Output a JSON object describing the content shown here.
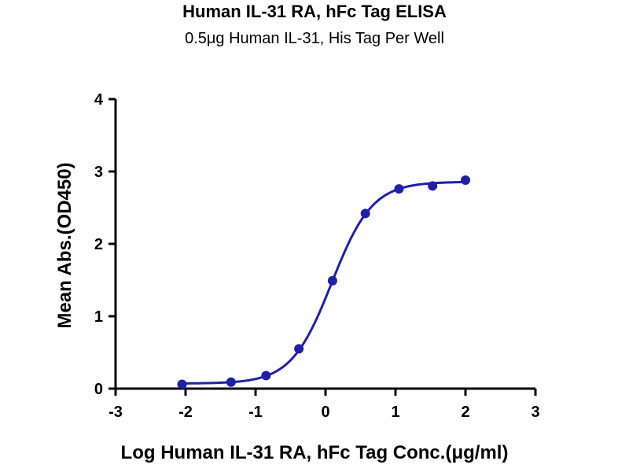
{
  "chart_data": {
    "type": "scatter",
    "title": "Human IL-31 RA, hFc Tag ELISA",
    "subtitle": "0.5μg Human IL-31, His Tag Per Well",
    "xlabel": "Log Human IL-31 RA, hFc Tag Conc.(μg/ml)",
    "ylabel": "Mean Abs.(OD450)",
    "xlim": [
      -3,
      3
    ],
    "ylim": [
      0,
      4
    ],
    "xticks": [
      "-3",
      "-2",
      "-1",
      "0",
      "1",
      "2",
      "3"
    ],
    "yticks": [
      "0",
      "1",
      "2",
      "3",
      "4"
    ],
    "grid": false,
    "series": [
      {
        "x": [
          -2.05,
          -1.35,
          -0.85,
          -0.38,
          0.1,
          0.57,
          1.05,
          1.53,
          2.0
        ],
        "y": [
          0.06,
          0.09,
          0.18,
          0.55,
          1.49,
          2.42,
          2.76,
          2.8,
          2.88
        ],
        "fit": "sigmoidal"
      }
    ],
    "colors": {
      "series": "#1f1fa8",
      "axis": "#000000"
    }
  }
}
